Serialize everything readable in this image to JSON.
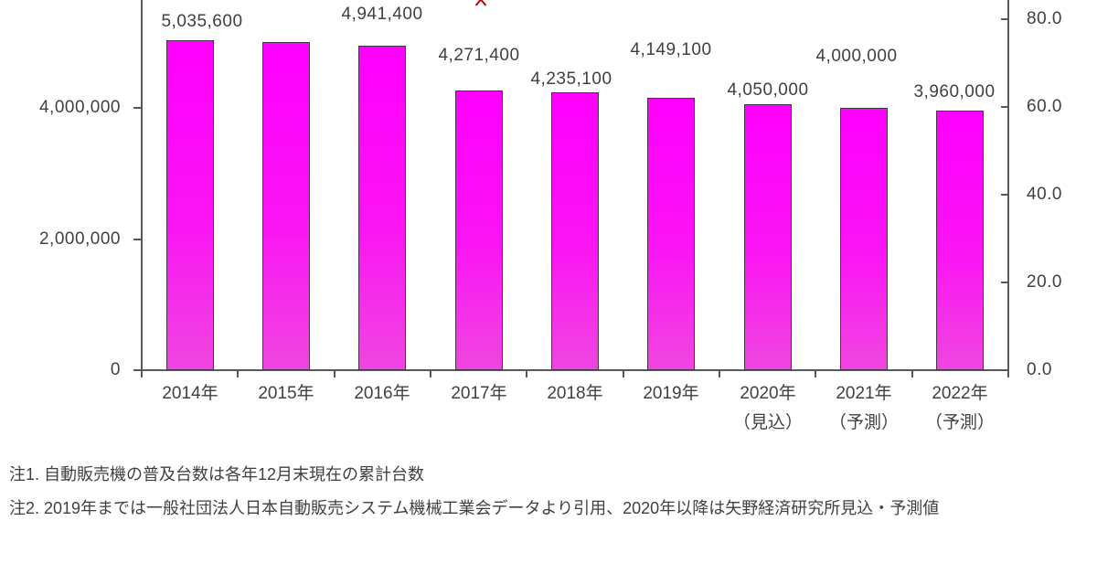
{
  "chart_data": {
    "type": "bar",
    "title": "",
    "categories": [
      {
        "label": "2014年",
        "sublabel": ""
      },
      {
        "label": "2015年",
        "sublabel": ""
      },
      {
        "label": "2016年",
        "sublabel": ""
      },
      {
        "label": "2017年",
        "sublabel": ""
      },
      {
        "label": "2018年",
        "sublabel": ""
      },
      {
        "label": "2019年",
        "sublabel": ""
      },
      {
        "label": "2020年",
        "sublabel": "（見込）"
      },
      {
        "label": "2021年",
        "sublabel": "（予測）"
      },
      {
        "label": "2022年",
        "sublabel": "（予測）"
      }
    ],
    "series": [
      {
        "name": "vending-machine-installed-units",
        "type": "bar",
        "values": [
          5035600,
          5000000,
          4941400,
          4271400,
          4235100,
          4149100,
          4050000,
          4000000,
          3960000
        ],
        "data_labels": [
          "5,035,600",
          "",
          "4,941,400",
          "4,271,400",
          "4,235,100",
          "4,149,100",
          "4,050,000",
          "4,000,000",
          "3,960,000"
        ]
      }
    ],
    "left_axis": {
      "tick_labels": [
        "0",
        "2,000,000",
        "4,000,000"
      ],
      "tick_values": [
        0,
        2000000,
        4000000
      ],
      "visible_max": 5650000
    },
    "right_axis": {
      "tick_labels": [
        "0.0",
        "20.0",
        "40.0",
        "60.0",
        "80.0"
      ],
      "tick_values": [
        0,
        20,
        40,
        60,
        80
      ],
      "visible_max": 84.5
    },
    "grid": false,
    "notes": [
      "注1. 自動販売機の普及台数は各年12月末現在の累計台数",
      "注2. 2019年までは一般社団法人日本自動販売システム機械工業会データより引用、2020年以降は矢野経済研究所見込・予測値"
    ],
    "colors": {
      "bar_fill_top": "#ff00ff",
      "bar_fill_bottom": "#ef46e0",
      "bar_border": "#47354a",
      "axis_line": "#595959",
      "text": "#404040",
      "clipped_marker_red": "#c00000",
      "background": "#ffffff"
    }
  }
}
